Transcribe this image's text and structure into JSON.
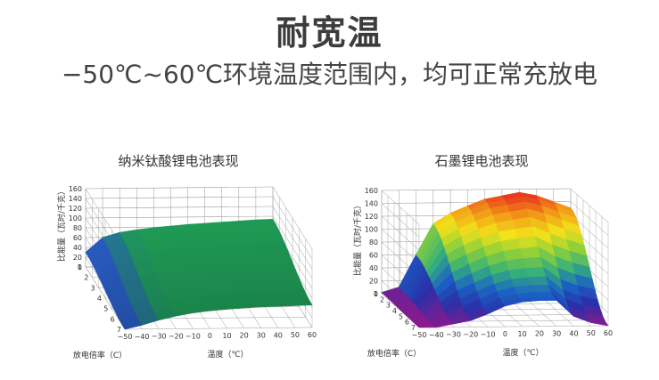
{
  "page": {
    "title": "耐宽温",
    "subtitle": "−50℃~60℃环境温度范围内，均可正常充放电"
  },
  "chart_data": [
    {
      "type": "surface3d",
      "title": "纳米钛酸锂电池表现",
      "ylabel": "比能量（瓦时/千克）",
      "xlabel": "温度（℃）",
      "zlabel": "放电倍率（C）",
      "ylim": [
        0,
        160
      ],
      "yticks": [
        "0",
        "20",
        "40",
        "60",
        "80",
        "100",
        "120",
        "140",
        "160"
      ],
      "xticks": [
        "−50",
        "−40",
        "−30",
        "−20",
        "−10",
        "0",
        "10",
        "20",
        "30",
        "40",
        "50",
        "60"
      ],
      "zticks": [
        "1",
        "2",
        "3",
        "4",
        "5",
        "6",
        "7"
      ],
      "temperature": [
        -50,
        -40,
        -30,
        -20,
        -10,
        0,
        10,
        20,
        30,
        40,
        50,
        60
      ],
      "values_at_rate_1": [
        30,
        60,
        70,
        75,
        79,
        82,
        85,
        87,
        89,
        91,
        93,
        94
      ],
      "values_at_rate_7": [
        0,
        8,
        18,
        26,
        32,
        36,
        39,
        41,
        43,
        44,
        45,
        46
      ],
      "color": "#1f9a55"
    },
    {
      "type": "surface3d",
      "title": "石墨锂电池表现",
      "ylabel": "比能量（瓦时/千克）",
      "xlabel": "温度（℃）",
      "zlabel": "放电倍率（C）",
      "ylim": [
        0,
        160
      ],
      "yticks": [
        "0",
        "20",
        "40",
        "60",
        "80",
        "100",
        "120",
        "140",
        "160"
      ],
      "xticks": [
        "−50",
        "−40",
        "−30",
        "−20",
        "−10",
        "0",
        "10",
        "20",
        "30",
        "40",
        "50",
        "60"
      ],
      "zticks": [
        "1",
        "2",
        "3",
        "4",
        "5",
        "6",
        "7"
      ],
      "temperature": [
        -50,
        -40,
        -30,
        -20,
        -10,
        0,
        10,
        20,
        30,
        40,
        50,
        60
      ],
      "values_at_rate_1": [
        2,
        10,
        60,
        108,
        124,
        135,
        145,
        150,
        155,
        150,
        140,
        130
      ],
      "values_at_rate_7": [
        0,
        0,
        5,
        10,
        20,
        32,
        38,
        40,
        40,
        15,
        5,
        0
      ],
      "color_scale": [
        "#8a1a8e",
        "#2a2fa8",
        "#1b62c5",
        "#35b07a",
        "#8ccf3a",
        "#f2e21a",
        "#f29a18",
        "#e8281f"
      ]
    }
  ]
}
